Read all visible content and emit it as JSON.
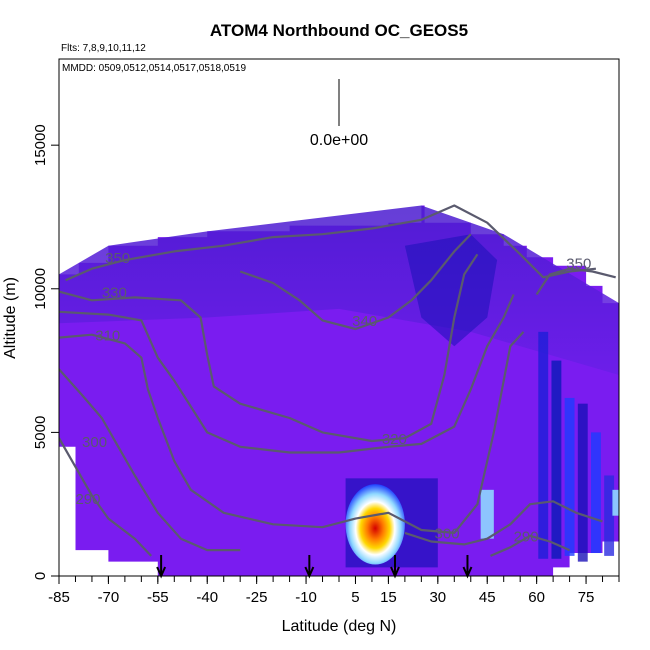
{
  "chart_data": {
    "type": "heatmap",
    "title": "ATOM4 Northbound OC_GEOS5",
    "subtitle": "Flts: 7,8,9,10,11,12",
    "annotation": "MMDD: 0509,0512,0514,0517,0518,0519",
    "scale_label": "0.0e+00",
    "xlabel": "Latitude (deg N)",
    "ylabel": "Altitude (m)",
    "xlim": [
      -85,
      85
    ],
    "ylim": [
      0,
      18000
    ],
    "x_ticks": [
      -85,
      -70,
      -55,
      -40,
      -25,
      -10,
      5,
      15,
      30,
      45,
      60,
      75
    ],
    "y_ticks": [
      0,
      5000,
      10000,
      15000
    ],
    "arrow_latitudes": [
      -54,
      -9,
      17,
      39
    ],
    "grid": false,
    "colors": {
      "background_field": "#7a1cf0",
      "upper_field": "#5a1ee0",
      "dark_blue": "#1a10b8",
      "blue": "#1e3cff",
      "light_blue": "#8fd8ff",
      "white": "#ffffff",
      "yellow": "#ffd800",
      "orange": "#ff7a00",
      "red": "#d40000",
      "contour": "#5a5a6e"
    },
    "contours": [
      {
        "label": "350",
        "label_x": -71,
        "label_y": 10900,
        "points": [
          [
            -83,
            10300
          ],
          [
            -75,
            10700
          ],
          [
            -65,
            11000
          ],
          [
            -50,
            11300
          ],
          [
            -35,
            11500
          ],
          [
            -20,
            11800
          ],
          [
            -5,
            11900
          ],
          [
            10,
            12100
          ],
          [
            25,
            12400
          ],
          [
            35,
            12900
          ],
          [
            45,
            12300
          ],
          [
            55,
            11200
          ],
          [
            62,
            10400
          ],
          [
            70,
            10600
          ],
          [
            78,
            10700
          ]
        ]
      },
      {
        "label": "350",
        "label_x": 69,
        "label_y": 10700,
        "points": [
          [
            60,
            9800
          ],
          [
            64,
            10500
          ],
          [
            70,
            10700
          ],
          [
            77,
            10600
          ],
          [
            84,
            10400
          ]
        ]
      },
      {
        "label": "340",
        "label_x": 4,
        "label_y": 8700,
        "points": [
          [
            -30,
            10600
          ],
          [
            -20,
            10200
          ],
          [
            -12,
            9600
          ],
          [
            -5,
            8900
          ],
          [
            5,
            8600
          ],
          [
            15,
            9000
          ],
          [
            22,
            9600
          ],
          [
            28,
            10300
          ],
          [
            35,
            11300
          ],
          [
            40,
            11900
          ]
        ]
      },
      {
        "label": "330",
        "label_x": -72,
        "label_y": 9700,
        "points": [
          [
            -85,
            9900
          ],
          [
            -75,
            9600
          ],
          [
            -62,
            9700
          ],
          [
            -48,
            9600
          ],
          [
            -42,
            9000
          ],
          [
            -40,
            7700
          ],
          [
            -38,
            6600
          ],
          [
            -30,
            6000
          ],
          [
            -15,
            5500
          ],
          [
            -5,
            5000
          ],
          [
            10,
            4700
          ],
          [
            20,
            4800
          ],
          [
            28,
            5300
          ],
          [
            32,
            7000
          ],
          [
            35,
            9000
          ],
          [
            38,
            10500
          ],
          [
            42,
            11200
          ]
        ]
      },
      {
        "label": "320",
        "label_x": 13,
        "label_y": 4600,
        "points": [
          [
            -85,
            9200
          ],
          [
            -70,
            9100
          ],
          [
            -60,
            8900
          ],
          [
            -55,
            7600
          ],
          [
            -50,
            6800
          ],
          [
            -45,
            5900
          ],
          [
            -40,
            5000
          ],
          [
            -30,
            4500
          ],
          [
            -15,
            4300
          ],
          [
            0,
            4300
          ],
          [
            15,
            4500
          ],
          [
            25,
            4600
          ],
          [
            35,
            5200
          ],
          [
            40,
            6500
          ],
          [
            45,
            8000
          ],
          [
            50,
            9000
          ],
          [
            53,
            9800
          ]
        ]
      },
      {
        "label": "310",
        "label_x": -74,
        "label_y": 8200,
        "points": [
          [
            -85,
            8300
          ],
          [
            -75,
            8400
          ],
          [
            -65,
            8100
          ],
          [
            -60,
            7600
          ],
          [
            -58,
            6500
          ],
          [
            -55,
            5500
          ],
          [
            -50,
            4000
          ],
          [
            -45,
            3000
          ],
          [
            -35,
            2200
          ],
          [
            -20,
            1800
          ],
          [
            -5,
            1700
          ],
          [
            5,
            2000
          ],
          [
            15,
            2200
          ],
          [
            25,
            1600
          ],
          [
            35,
            1500
          ],
          [
            42,
            2500
          ],
          [
            47,
            5000
          ],
          [
            52,
            8000
          ],
          [
            56,
            8500
          ]
        ]
      },
      {
        "label": "300",
        "label_x": -78,
        "label_y": 4500,
        "points": [
          [
            -85,
            7200
          ],
          [
            -78,
            6300
          ],
          [
            -72,
            5500
          ],
          [
            -67,
            4500
          ],
          [
            -62,
            3500
          ],
          [
            -55,
            2200
          ],
          [
            -48,
            1300
          ],
          [
            -40,
            900
          ],
          [
            -30,
            900
          ]
        ]
      },
      {
        "label": "290",
        "label_x": -80,
        "label_y": 2500,
        "points": [
          [
            -85,
            4800
          ],
          [
            -80,
            3800
          ],
          [
            -75,
            2800
          ],
          [
            -70,
            2000
          ],
          [
            -62,
            1300
          ],
          [
            -57,
            700
          ]
        ]
      },
      {
        "label": "300",
        "label_x": 29,
        "label_y": 1300,
        "points": [
          [
            20,
            1500
          ],
          [
            28,
            1200
          ],
          [
            38,
            1100
          ],
          [
            45,
            1300
          ],
          [
            52,
            1800
          ],
          [
            58,
            2500
          ],
          [
            65,
            2600
          ],
          [
            72,
            2200
          ],
          [
            80,
            1900
          ]
        ]
      },
      {
        "label": "290",
        "label_x": 53,
        "label_y": 1200,
        "points": [
          [
            46,
            700
          ],
          [
            52,
            1000
          ],
          [
            58,
            1400
          ],
          [
            64,
            1200
          ],
          [
            70,
            900
          ]
        ]
      }
    ]
  }
}
